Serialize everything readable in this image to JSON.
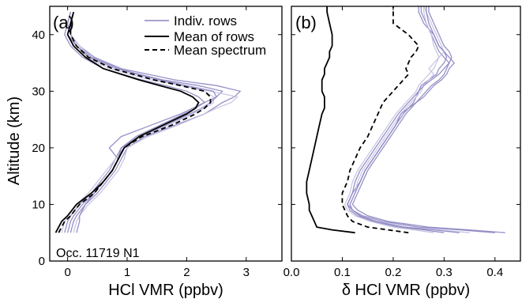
{
  "colors": {
    "indiv": "#8b85c1",
    "indiv_light": "#c4c0e2",
    "mean_rows": "#000000",
    "mean_spectrum": "#000000"
  },
  "ylabel": "Altitude (km)",
  "legend": {
    "indiv": "Indiv. rows",
    "mean_rows": "Mean of rows",
    "mean_spectrum": "Mean spectrum",
    "placement": "top-right of panel (a)"
  },
  "annotation": "Occ. 11719 N1",
  "chart_data": [
    {
      "type": "line",
      "panel_label": "(a)",
      "xlabel": "HCl VMR (ppbv)",
      "ylabel": "Altitude (km)",
      "xlim": [
        -0.3,
        3.6
      ],
      "ylim": [
        0,
        45
      ],
      "xticks": [
        "0",
        "1",
        "2",
        "3"
      ],
      "yticks": [
        "0",
        "10",
        "20",
        "30",
        "40"
      ],
      "grid": false,
      "altitudes": [
        5,
        7,
        8,
        10,
        12,
        14,
        16,
        18,
        20,
        22,
        24,
        26,
        27,
        28,
        29,
        30,
        31,
        32,
        34,
        36,
        38,
        40,
        42,
        44
      ],
      "mean_of_rows": [
        -0.2,
        -0.1,
        0.0,
        0.15,
        0.4,
        0.6,
        0.75,
        0.85,
        0.95,
        1.2,
        1.6,
        2.0,
        2.15,
        2.2,
        2.1,
        1.9,
        1.55,
        1.2,
        0.6,
        0.3,
        0.1,
        0.0,
        0.05,
        0.1
      ],
      "mean_spectrum": [
        -0.15,
        -0.05,
        0.05,
        0.2,
        0.45,
        0.6,
        0.75,
        0.85,
        0.95,
        1.25,
        1.75,
        2.15,
        2.3,
        2.4,
        2.4,
        2.3,
        1.9,
        1.45,
        0.75,
        0.35,
        0.15,
        0.05,
        0.05,
        0.1
      ],
      "individual_rows": [
        [
          0.05,
          0.1,
          0.15,
          0.3,
          0.5,
          0.65,
          0.8,
          0.9,
          1.0,
          1.3,
          1.8,
          2.3,
          2.45,
          2.6,
          2.8,
          2.9,
          2.5,
          1.8,
          0.9,
          0.45,
          0.2,
          0.05,
          0.0,
          0.05
        ],
        [
          0.0,
          0.05,
          0.1,
          0.25,
          0.45,
          0.6,
          0.75,
          0.85,
          0.7,
          0.9,
          1.4,
          1.9,
          2.1,
          2.3,
          2.5,
          2.6,
          2.2,
          1.6,
          0.8,
          0.35,
          0.15,
          0.0,
          0.05,
          0.1
        ],
        [
          0.1,
          0.15,
          0.2,
          0.35,
          0.55,
          0.7,
          0.85,
          0.95,
          1.0,
          1.35,
          1.85,
          2.3,
          2.5,
          2.75,
          2.85,
          2.4,
          1.9,
          1.4,
          0.7,
          0.3,
          0.1,
          0.0,
          0.05,
          0.1
        ],
        [
          -0.05,
          0.0,
          0.05,
          0.2,
          0.4,
          0.55,
          0.7,
          0.8,
          0.9,
          1.15,
          1.55,
          1.95,
          2.15,
          2.3,
          2.2,
          2.0,
          1.65,
          1.25,
          0.6,
          0.25,
          0.05,
          -0.05,
          0.0,
          0.05
        ],
        [
          -0.1,
          -0.05,
          0.0,
          0.15,
          0.35,
          0.5,
          0.65,
          0.8,
          0.95,
          1.25,
          1.7,
          2.1,
          2.3,
          2.45,
          2.45,
          2.3,
          1.95,
          1.5,
          0.8,
          0.4,
          0.2,
          0.05,
          0.05,
          0.1
        ],
        [
          0.15,
          0.2,
          0.2,
          0.3,
          0.45,
          0.6,
          0.75,
          0.85,
          0.9,
          1.2,
          1.65,
          2.05,
          2.25,
          2.4,
          2.5,
          2.45,
          2.0,
          1.55,
          0.85,
          0.4,
          0.15,
          0.05,
          0.05,
          0.1
        ]
      ]
    },
    {
      "type": "line",
      "panel_label": "(b)",
      "xlabel": "δ HCl VMR (ppbv)",
      "ylabel": "Altitude (km)",
      "xlim": [
        0.0,
        0.45
      ],
      "ylim": [
        0,
        45
      ],
      "xticks": [
        "0.0",
        "0.1",
        "0.2",
        "0.3",
        "0.4"
      ],
      "yticks": [
        "0",
        "10",
        "20",
        "30",
        "40"
      ],
      "grid": false,
      "altitudes": [
        5,
        5.5,
        6,
        7,
        8,
        9,
        10,
        12,
        14,
        16,
        18,
        20,
        22,
        24,
        26,
        27,
        28,
        29,
        30,
        31,
        32,
        33,
        34,
        35,
        36,
        37,
        38,
        40,
        42,
        44,
        45
      ],
      "mean_of_rows": [
        0.125,
        0.08,
        0.05,
        0.045,
        0.04,
        0.035,
        0.035,
        0.03,
        0.03,
        0.035,
        0.04,
        0.045,
        0.05,
        0.055,
        0.06,
        0.065,
        0.065,
        0.065,
        0.06,
        0.06,
        0.06,
        0.065,
        0.065,
        0.07,
        0.075,
        0.075,
        0.08,
        0.08,
        0.075,
        0.07,
        0.07
      ],
      "mean_spectrum": [
        0.23,
        0.19,
        0.15,
        0.12,
        0.11,
        0.105,
        0.1,
        0.1,
        0.11,
        0.115,
        0.125,
        0.135,
        0.15,
        0.16,
        0.17,
        0.175,
        0.18,
        0.19,
        0.2,
        0.21,
        0.22,
        0.23,
        0.225,
        0.23,
        0.235,
        0.245,
        0.25,
        0.23,
        0.2,
        0.2,
        0.2
      ],
      "individual_rows": [
        [
          0.4,
          0.33,
          0.25,
          0.18,
          0.14,
          0.12,
          0.11,
          0.12,
          0.135,
          0.145,
          0.16,
          0.175,
          0.19,
          0.205,
          0.22,
          0.23,
          0.24,
          0.245,
          0.25,
          0.255,
          0.27,
          0.285,
          0.29,
          0.3,
          0.305,
          0.3,
          0.29,
          0.28,
          0.26,
          0.25,
          0.25
        ],
        [
          0.42,
          0.35,
          0.27,
          0.19,
          0.15,
          0.13,
          0.12,
          0.13,
          0.14,
          0.15,
          0.165,
          0.18,
          0.195,
          0.21,
          0.225,
          0.235,
          0.245,
          0.255,
          0.265,
          0.275,
          0.29,
          0.3,
          0.305,
          0.31,
          0.3,
          0.29,
          0.285,
          0.275,
          0.265,
          0.255,
          0.255
        ],
        [
          0.35,
          0.29,
          0.23,
          0.17,
          0.135,
          0.12,
          0.115,
          0.125,
          0.13,
          0.14,
          0.155,
          0.17,
          0.185,
          0.2,
          0.215,
          0.225,
          0.235,
          0.245,
          0.255,
          0.26,
          0.27,
          0.28,
          0.27,
          0.28,
          0.29,
          0.3,
          0.295,
          0.285,
          0.275,
          0.265,
          0.26
        ],
        [
          0.3,
          0.26,
          0.21,
          0.16,
          0.13,
          0.115,
          0.11,
          0.12,
          0.125,
          0.135,
          0.15,
          0.165,
          0.18,
          0.195,
          0.21,
          0.22,
          0.23,
          0.24,
          0.25,
          0.26,
          0.275,
          0.29,
          0.3,
          0.31,
          0.315,
          0.31,
          0.3,
          0.29,
          0.28,
          0.27,
          0.27
        ],
        [
          0.28,
          0.24,
          0.2,
          0.155,
          0.125,
          0.11,
          0.105,
          0.115,
          0.12,
          0.13,
          0.145,
          0.16,
          0.175,
          0.19,
          0.205,
          0.215,
          0.225,
          0.235,
          0.245,
          0.25,
          0.26,
          0.27,
          0.28,
          0.285,
          0.29,
          0.285,
          0.28,
          0.275,
          0.265,
          0.26,
          0.26
        ],
        [
          0.33,
          0.28,
          0.22,
          0.165,
          0.135,
          0.12,
          0.115,
          0.125,
          0.135,
          0.145,
          0.16,
          0.175,
          0.19,
          0.205,
          0.215,
          0.23,
          0.245,
          0.26,
          0.27,
          0.28,
          0.295,
          0.305,
          0.31,
          0.32,
          0.31,
          0.3,
          0.29,
          0.28,
          0.27,
          0.265,
          0.265
        ]
      ]
    }
  ]
}
